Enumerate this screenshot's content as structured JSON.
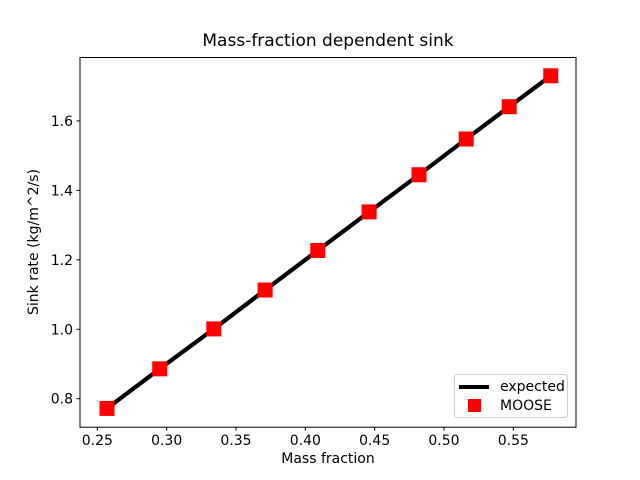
{
  "chart_data": {
    "type": "line",
    "title": "Mass-fraction dependent sink",
    "xlabel": "Mass fraction",
    "ylabel": "Sink rate (kg/m^2/s)",
    "grid": false,
    "background_color": "#ffffff",
    "axes_color": "#000000",
    "xlim": [
      0.2375,
      0.5952
    ],
    "ylim": [
      0.7179,
      1.7827
    ],
    "xticks": [
      0.25,
      0.3,
      0.35,
      0.4,
      0.45,
      0.5,
      0.55
    ],
    "xtick_labels": [
      "0.25",
      "0.30",
      "0.35",
      "0.40",
      "0.45",
      "0.50",
      "0.55"
    ],
    "yticks": [
      0.8,
      1.0,
      1.2,
      1.4,
      1.6
    ],
    "ytick_labels": [
      "0.8",
      "1.0",
      "1.2",
      "1.4",
      "1.6"
    ],
    "x": [
      0.257,
      0.295,
      0.334,
      0.371,
      0.409,
      0.446,
      0.482,
      0.516,
      0.547,
      0.577
    ],
    "series": [
      {
        "name": "expected",
        "style": "line",
        "color": "#000000",
        "linewidth": 4.2,
        "values": [
          0.772,
          0.886,
          1.001,
          1.113,
          1.227,
          1.338,
          1.445,
          1.548,
          1.641,
          1.73
        ]
      },
      {
        "name": "MOOSE",
        "style": "scatter",
        "marker": "square",
        "color": "#ff0000",
        "markersize": 15,
        "values": [
          0.772,
          0.886,
          1.001,
          1.113,
          1.227,
          1.338,
          1.445,
          1.548,
          1.641,
          1.73
        ]
      }
    ],
    "legend_position": "lower right"
  }
}
